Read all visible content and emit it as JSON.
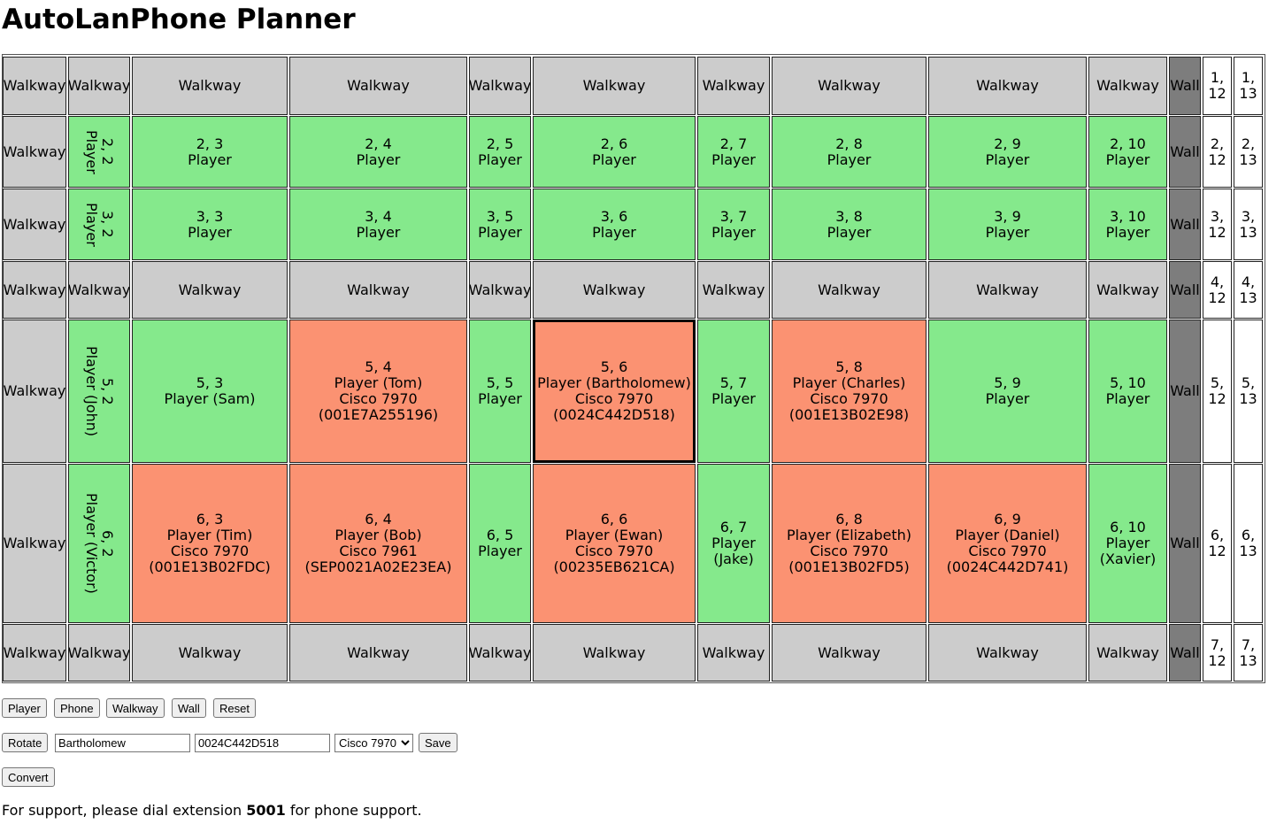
{
  "title": "AutoLanPhone Planner",
  "colors": {
    "walkway": "#cccccc",
    "player": "#85e98c",
    "phone": "#fb9272",
    "wall": "#7d7d7d",
    "empty": "#ffffff"
  },
  "grid": {
    "rows": [
      [
        {
          "type": "walkway",
          "text": "Walkway"
        },
        {
          "type": "walkway",
          "text": "Walkway"
        },
        {
          "type": "walkway",
          "text": "Walkway"
        },
        {
          "type": "walkway",
          "text": "Walkway"
        },
        {
          "type": "walkway",
          "text": "Walkway"
        },
        {
          "type": "walkway",
          "text": "Walkway"
        },
        {
          "type": "walkway",
          "text": "Walkway"
        },
        {
          "type": "walkway",
          "text": "Walkway"
        },
        {
          "type": "walkway",
          "text": "Walkway"
        },
        {
          "type": "walkway",
          "text": "Walkway"
        },
        {
          "type": "wall",
          "text": "Wall"
        },
        {
          "type": "empty",
          "text": "1,\n12"
        },
        {
          "type": "empty",
          "text": "1,\n13"
        }
      ],
      [
        {
          "type": "walkway",
          "text": "Walkway"
        },
        {
          "type": "player",
          "text": "2, 2\nPlayer",
          "rotated": true
        },
        {
          "type": "player",
          "text": "2, 3\nPlayer"
        },
        {
          "type": "player",
          "text": "2, 4\nPlayer"
        },
        {
          "type": "player",
          "text": "2, 5\nPlayer"
        },
        {
          "type": "player",
          "text": "2, 6\nPlayer"
        },
        {
          "type": "player",
          "text": "2, 7\nPlayer"
        },
        {
          "type": "player",
          "text": "2, 8\nPlayer"
        },
        {
          "type": "player",
          "text": "2, 9\nPlayer"
        },
        {
          "type": "player",
          "text": "2, 10\nPlayer"
        },
        {
          "type": "wall",
          "text": "Wall"
        },
        {
          "type": "empty",
          "text": "2,\n12"
        },
        {
          "type": "empty",
          "text": "2,\n13"
        }
      ],
      [
        {
          "type": "walkway",
          "text": "Walkway"
        },
        {
          "type": "player",
          "text": "3, 2\nPlayer",
          "rotated": true
        },
        {
          "type": "player",
          "text": "3, 3\nPlayer"
        },
        {
          "type": "player",
          "text": "3, 4\nPlayer"
        },
        {
          "type": "player",
          "text": "3, 5\nPlayer"
        },
        {
          "type": "player",
          "text": "3, 6\nPlayer"
        },
        {
          "type": "player",
          "text": "3, 7\nPlayer"
        },
        {
          "type": "player",
          "text": "3, 8\nPlayer"
        },
        {
          "type": "player",
          "text": "3, 9\nPlayer"
        },
        {
          "type": "player",
          "text": "3, 10\nPlayer"
        },
        {
          "type": "wall",
          "text": "Wall"
        },
        {
          "type": "empty",
          "text": "3,\n12"
        },
        {
          "type": "empty",
          "text": "3,\n13"
        }
      ],
      [
        {
          "type": "walkway",
          "text": "Walkway"
        },
        {
          "type": "walkway",
          "text": "Walkway"
        },
        {
          "type": "walkway",
          "text": "Walkway"
        },
        {
          "type": "walkway",
          "text": "Walkway"
        },
        {
          "type": "walkway",
          "text": "Walkway"
        },
        {
          "type": "walkway",
          "text": "Walkway"
        },
        {
          "type": "walkway",
          "text": "Walkway"
        },
        {
          "type": "walkway",
          "text": "Walkway"
        },
        {
          "type": "walkway",
          "text": "Walkway"
        },
        {
          "type": "walkway",
          "text": "Walkway"
        },
        {
          "type": "wall",
          "text": "Wall"
        },
        {
          "type": "empty",
          "text": "4,\n12"
        },
        {
          "type": "empty",
          "text": "4,\n13"
        }
      ],
      [
        {
          "type": "walkway",
          "text": "Walkway"
        },
        {
          "type": "player",
          "text": "5, 2\nPlayer (John)",
          "rotated": true
        },
        {
          "type": "player",
          "text": "5, 3\nPlayer (Sam)"
        },
        {
          "type": "phone",
          "text": "5, 4\nPlayer (Tom)\nCisco 7970\n(001E7A255196)"
        },
        {
          "type": "player",
          "text": "5, 5\nPlayer"
        },
        {
          "type": "phone",
          "text": "5, 6\nPlayer (Bartholomew)\nCisco 7970\n(0024C442D518)",
          "selected": true
        },
        {
          "type": "player",
          "text": "5, 7\nPlayer"
        },
        {
          "type": "phone",
          "text": "5, 8\nPlayer (Charles)\nCisco 7970\n(001E13B02E98)"
        },
        {
          "type": "player",
          "text": "5, 9\nPlayer"
        },
        {
          "type": "player",
          "text": "5, 10\nPlayer"
        },
        {
          "type": "wall",
          "text": "Wall"
        },
        {
          "type": "empty",
          "text": "5,\n12"
        },
        {
          "type": "empty",
          "text": "5,\n13"
        }
      ],
      [
        {
          "type": "walkway",
          "text": "Walkway"
        },
        {
          "type": "player",
          "text": "6, 2\nPlayer (Victor)",
          "rotated": true
        },
        {
          "type": "phone",
          "text": "6, 3\nPlayer (Tim)\nCisco 7970\n(001E13B02FDC)"
        },
        {
          "type": "phone",
          "text": "6, 4\nPlayer (Bob)\nCisco 7961\n(SEP0021A02E23EA)"
        },
        {
          "type": "player",
          "text": "6, 5\nPlayer"
        },
        {
          "type": "phone",
          "text": "6, 6\nPlayer (Ewan)\nCisco 7970\n(00235EB621CA)"
        },
        {
          "type": "player",
          "text": "6, 7\nPlayer\n(Jake)"
        },
        {
          "type": "phone",
          "text": "6, 8\nPlayer (Elizabeth)\nCisco 7970\n(001E13B02FD5)"
        },
        {
          "type": "phone",
          "text": "6, 9\nPlayer (Daniel)\nCisco 7970\n(0024C442D741)"
        },
        {
          "type": "player",
          "text": "6, 10\nPlayer\n(Xavier)"
        },
        {
          "type": "wall",
          "text": "Wall"
        },
        {
          "type": "empty",
          "text": "6,\n12"
        },
        {
          "type": "empty",
          "text": "6,\n13"
        }
      ],
      [
        {
          "type": "walkway",
          "text": "Walkway"
        },
        {
          "type": "walkway",
          "text": "Walkway"
        },
        {
          "type": "walkway",
          "text": "Walkway"
        },
        {
          "type": "walkway",
          "text": "Walkway"
        },
        {
          "type": "walkway",
          "text": "Walkway"
        },
        {
          "type": "walkway",
          "text": "Walkway"
        },
        {
          "type": "walkway",
          "text": "Walkway"
        },
        {
          "type": "walkway",
          "text": "Walkway"
        },
        {
          "type": "walkway",
          "text": "Walkway"
        },
        {
          "type": "walkway",
          "text": "Walkway"
        },
        {
          "type": "wall",
          "text": "Wall"
        },
        {
          "type": "empty",
          "text": "7,\n12"
        },
        {
          "type": "empty",
          "text": "7,\n13"
        }
      ]
    ]
  },
  "toolbar": {
    "player_label": "Player",
    "phone_label": "Phone",
    "walkway_label": "Walkway",
    "wall_label": "Wall",
    "reset_label": "Reset"
  },
  "editor": {
    "rotate_label": "Rotate",
    "name_value": "Bartholomew",
    "mac_value": "0024C442D518",
    "model_selected": "Cisco 7970",
    "save_label": "Save"
  },
  "convert_label": "Convert",
  "support": {
    "prefix": "For support, please dial extension ",
    "extension": "5001",
    "suffix": " for phone support."
  }
}
